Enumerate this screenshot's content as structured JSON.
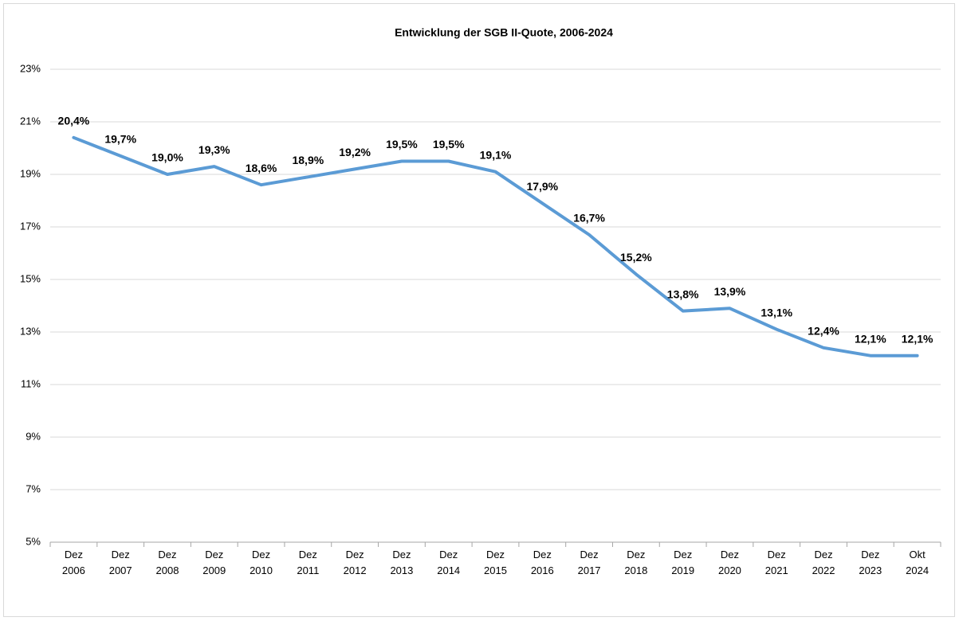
{
  "chart_data": {
    "type": "line",
    "title": "Entwicklung der SGB II-Quote, 2006-2024",
    "categories": [
      "Dez 2006",
      "Dez 2007",
      "Dez 2008",
      "Dez 2009",
      "Dez 2010",
      "Dez 2011",
      "Dez 2012",
      "Dez 2013",
      "Dez 2014",
      "Dez 2015",
      "Dez 2016",
      "Dez 2017",
      "Dez 2018",
      "Dez 2019",
      "Dez 2020",
      "Dez 2021",
      "Dez 2022",
      "Dez 2023",
      "Okt 2024"
    ],
    "series": [
      {
        "name": "SGB II-Quote",
        "color": "#5b9bd5",
        "values": [
          20.4,
          19.7,
          19.0,
          19.3,
          18.6,
          18.9,
          19.2,
          19.5,
          19.5,
          19.1,
          17.9,
          16.7,
          15.2,
          13.8,
          13.9,
          13.1,
          12.4,
          12.1,
          12.1
        ],
        "value_labels": [
          "20,4%",
          "19,7%",
          "19,0%",
          "19,3%",
          "18,6%",
          "18,9%",
          "19,2%",
          "19,5%",
          "19,5%",
          "19,1%",
          "17,9%",
          "16,7%",
          "15,2%",
          "13,8%",
          "13,9%",
          "13,1%",
          "12,4%",
          "12,1%",
          "12,1%"
        ]
      }
    ],
    "ylim": [
      5,
      23
    ],
    "yticks": [
      {
        "value": 5,
        "label": "5%"
      },
      {
        "value": 7,
        "label": "7%"
      },
      {
        "value": 9,
        "label": "9%"
      },
      {
        "value": 11,
        "label": "11%"
      },
      {
        "value": 13,
        "label": "13%"
      },
      {
        "value": 15,
        "label": "15%"
      },
      {
        "value": 17,
        "label": "17%"
      },
      {
        "value": 19,
        "label": "19%"
      },
      {
        "value": 21,
        "label": "21%"
      },
      {
        "value": 23,
        "label": "23%"
      }
    ],
    "grid": true
  }
}
